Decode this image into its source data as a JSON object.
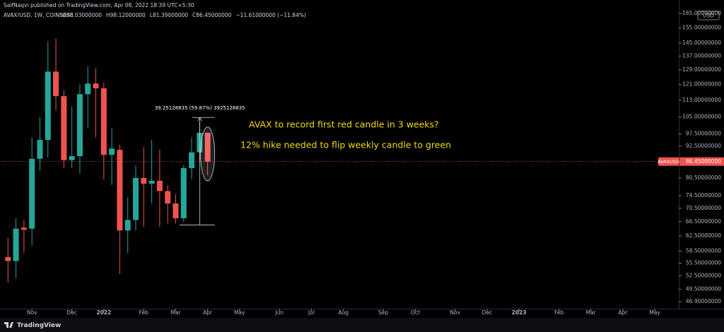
{
  "header": {
    "publisher": "SaifNaqvi published on TradingView.com, Apr 08, 2022 18:39 UTC+5:30",
    "footer": "TradingView"
  },
  "chart_data": {
    "type": "candlestick",
    "symbol": "AVAX/USD, 1W, COINBASE",
    "legend_values": [
      "O98.03000000",
      "H98.12000000",
      "L81.39000000",
      "C86.45000000",
      "−11.61000000 (−11.84%)"
    ],
    "currency": "USD",
    "up_color": "#26a69a",
    "down_color": "#ef5350",
    "log_scale": true,
    "grid": false,
    "x": [
      0,
      1,
      2,
      3,
      4,
      5,
      6,
      7,
      8,
      9,
      10,
      11,
      12,
      13,
      14,
      15,
      16,
      17,
      18,
      19,
      20,
      21,
      22,
      23,
      24,
      25
    ],
    "open": [
      57,
      56,
      64.8,
      64.5,
      87.5,
      95,
      128,
      115,
      87,
      88.5,
      116,
      121.5,
      119,
      89,
      91,
      64,
      67,
      80.5,
      78.5,
      79.5,
      76,
      72,
      67.5,
      84,
      90,
      98.03
    ],
    "high": [
      62,
      67.5,
      67,
      96,
      105,
      146,
      148,
      118,
      110,
      121,
      131,
      130,
      122,
      100,
      93,
      74,
      85,
      92,
      95,
      91,
      78,
      75,
      85,
      96,
      103,
      98.12
    ],
    "low": [
      51,
      52,
      58,
      60,
      83,
      88,
      108,
      84,
      84,
      82,
      100,
      96,
      80,
      78,
      53,
      58,
      64,
      65,
      72,
      65,
      66,
      66,
      66.5,
      80,
      86,
      81.39
    ],
    "close": [
      56,
      64.5,
      64.2,
      87.5,
      95,
      128,
      115,
      87,
      88.5,
      116,
      121.5,
      119,
      89,
      91.5,
      64,
      67,
      80.5,
      78.5,
      79.5,
      76,
      72,
      67.5,
      84,
      90,
      98,
      86.45
    ],
    "xlim": [
      -1,
      84
    ],
    "xticks": [
      {
        "value": 3,
        "label": "Nov"
      },
      {
        "value": 8,
        "label": "Dec"
      },
      {
        "value": 12,
        "label": "2022"
      },
      {
        "value": 17,
        "label": "Feb"
      },
      {
        "value": 21,
        "label": "Mar"
      },
      {
        "value": 25,
        "label": "Apr"
      },
      {
        "value": 29,
        "label": "May"
      },
      {
        "value": 34,
        "label": "Jun"
      },
      {
        "value": 38,
        "label": "Jul"
      },
      {
        "value": 42,
        "label": "Aug"
      },
      {
        "value": 47,
        "label": "Sep"
      },
      {
        "value": 51,
        "label": "Oct"
      },
      {
        "value": 56,
        "label": "Nov"
      },
      {
        "value": 60,
        "label": "Dec"
      },
      {
        "value": 64,
        "label": "2023"
      },
      {
        "value": 69,
        "label": "Feb"
      },
      {
        "value": 73,
        "label": "Mar"
      },
      {
        "value": 77,
        "label": "Apr"
      },
      {
        "value": 81,
        "label": "May"
      }
    ],
    "ylim": [
      46.2,
      168.6
    ],
    "yticks": [
      {
        "value": 165,
        "label": "165.00000000"
      },
      {
        "value": 155,
        "label": "155.00000000"
      },
      {
        "value": 145,
        "label": "145.00000000"
      },
      {
        "value": 137,
        "label": "137.00000000"
      },
      {
        "value": 129,
        "label": "129.00000000"
      },
      {
        "value": 121,
        "label": "121.00000000"
      },
      {
        "value": 113,
        "label": "113.00000000"
      },
      {
        "value": 105,
        "label": "105.00000000"
      },
      {
        "value": 97.5,
        "label": "97.50000000"
      },
      {
        "value": 92.5,
        "label": "92.50000000"
      },
      {
        "value": 80.5,
        "label": "80.50000000"
      },
      {
        "value": 74.5,
        "label": "74.50000000"
      },
      {
        "value": 70.5,
        "label": "70.50000000"
      },
      {
        "value": 66.5,
        "label": "66.50000000"
      },
      {
        "value": 62.5,
        "label": "62.50000000"
      },
      {
        "value": 58.5,
        "label": "58.50000000"
      },
      {
        "value": 55.5,
        "label": "55.50000000"
      },
      {
        "value": 52.5,
        "label": "52.50000000"
      },
      {
        "value": 49.5,
        "label": "49.50000000"
      },
      {
        "value": 46.9,
        "label": "46.90000000"
      }
    ],
    "last_price": {
      "value": 86.45,
      "label": "86.45000000",
      "name": "AVAXUSD"
    },
    "measure": {
      "from": 65.56,
      "to": 104.81,
      "label": "39.25128835 (59.87%) 3925128835"
    },
    "annotations": [
      "AVAX to record first red candle in 3 weeks?",
      "12% hike needed to flip weekly candle to green"
    ],
    "annotation_color": "#f5d90a"
  }
}
